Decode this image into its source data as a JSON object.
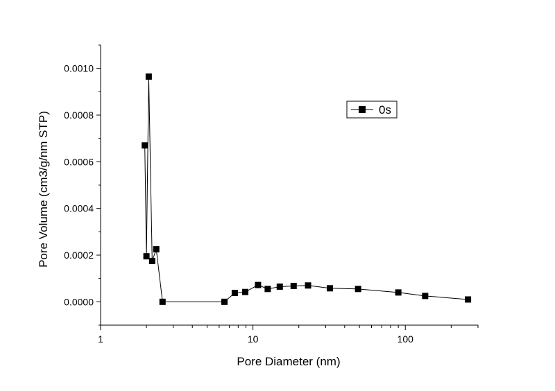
{
  "chart_data": {
    "type": "scatter",
    "title": "",
    "xlabel": "Pore Diameter (nm)",
    "ylabel": "Pore Volume (cm3/g/nm STP)",
    "x_scale": "log",
    "xlim": [
      1,
      300
    ],
    "ylim": [
      -0.0001,
      0.0011
    ],
    "x_ticks": [
      1,
      10,
      100
    ],
    "x_tick_labels": [
      "1",
      "10",
      "100"
    ],
    "y_ticks": [
      0,
      0.0002,
      0.0004,
      0.0006,
      0.0008,
      0.001
    ],
    "y_tick_labels": [
      "0.0000",
      "0.0002",
      "0.0004",
      "0.0006",
      "0.0008",
      "0.0010"
    ],
    "grid": false,
    "legend_position": "top-right",
    "series": [
      {
        "name": "0s",
        "color": "#000000",
        "marker": "square",
        "line": true,
        "x": [
          1.95,
          2.0,
          2.07,
          2.18,
          2.32,
          2.55,
          6.5,
          7.6,
          8.9,
          10.8,
          12.5,
          15.0,
          18.5,
          23.0,
          32.0,
          49.0,
          90.0,
          135.0,
          258.0
        ],
        "y": [
          0.00067,
          0.000195,
          0.000965,
          0.000175,
          0.000225,
          0.0,
          0.0,
          3.8e-05,
          4.2e-05,
          7.2e-05,
          5.5e-05,
          6.5e-05,
          6.8e-05,
          7e-05,
          5.8e-05,
          5.5e-05,
          4e-05,
          2.5e-05,
          1e-05
        ]
      }
    ]
  }
}
